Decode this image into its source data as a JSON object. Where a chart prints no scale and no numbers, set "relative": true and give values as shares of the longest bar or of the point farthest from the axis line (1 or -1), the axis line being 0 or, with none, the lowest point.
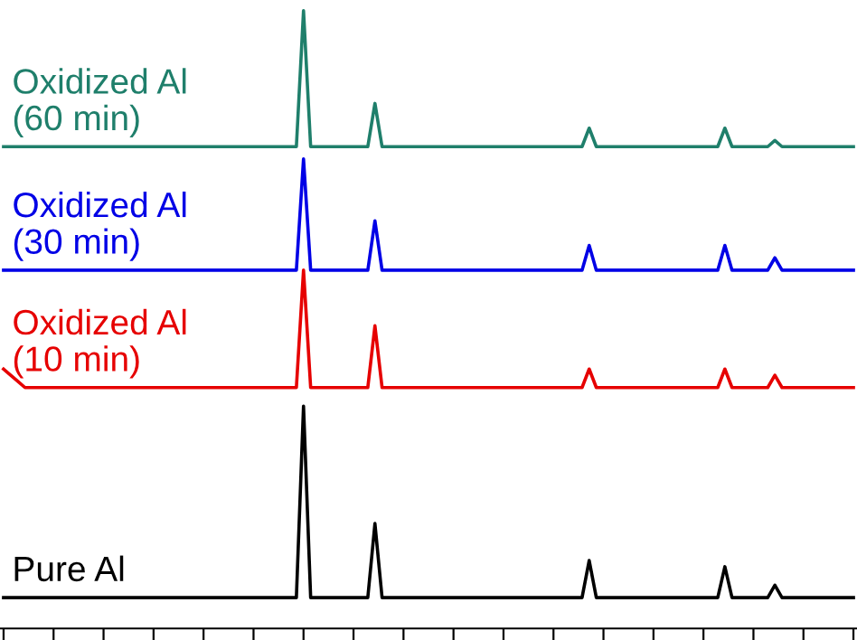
{
  "chart_data": {
    "type": "line",
    "relative": true,
    "grid": false,
    "legend": false,
    "marker": "none",
    "line_style": "solid",
    "categories": [
      null,
      null,
      null,
      null,
      null,
      null,
      null,
      null,
      null,
      null,
      null,
      null,
      null,
      null,
      null,
      null,
      null,
      null,
      null,
      null,
      null,
      null,
      null,
      null,
      null,
      null,
      null,
      null,
      null,
      null,
      null,
      null,
      null,
      null,
      null,
      null,
      null,
      null,
      null,
      null,
      null,
      null,
      null,
      null,
      null,
      null,
      null,
      null,
      null,
      null,
      null,
      null,
      null,
      null,
      null,
      null,
      null,
      null,
      null,
      null,
      null,
      null,
      null,
      null,
      null,
      null,
      null,
      null,
      null,
      null,
      null,
      null,
      null,
      null,
      null,
      null,
      null,
      null,
      null,
      null,
      null,
      null,
      null,
      null,
      null,
      null,
      null,
      null,
      null,
      null,
      null,
      null,
      null,
      null,
      null,
      null,
      null,
      null,
      null,
      null,
      null,
      null,
      null,
      null,
      null,
      null,
      null,
      null,
      null,
      null,
      null,
      null,
      null,
      null,
      null,
      null,
      null,
      null,
      null,
      null
    ],
    "series": [
      {
        "name": "Oxidized Al\n(60 min)",
        "color": "#1f7f6b",
        "values": [
          0.78,
          0.78,
          0.78,
          0.78,
          0.78,
          0.78,
          0.78,
          0.78,
          0.78,
          0.78,
          0.78,
          0.78,
          0.78,
          0.78,
          0.78,
          0.78,
          0.78,
          0.78,
          0.78,
          0.78,
          0.78,
          0.78,
          0.78,
          0.78,
          0.78,
          0.78,
          0.78,
          0.78,
          0.78,
          0.78,
          0.78,
          0.78,
          0.78,
          0.78,
          0.78,
          0.78,
          0.78,
          0.78,
          0.78,
          0.78,
          0.78,
          0.78,
          1,
          0.78,
          0.78,
          0.78,
          0.78,
          0.78,
          0.78,
          0.78,
          0.78,
          0.78,
          0.85,
          0.78,
          0.78,
          0.78,
          0.78,
          0.78,
          0.78,
          0.78,
          0.78,
          0.78,
          0.78,
          0.78,
          0.78,
          0.78,
          0.78,
          0.78,
          0.78,
          0.78,
          0.78,
          0.78,
          0.78,
          0.78,
          0.78,
          0.78,
          0.78,
          0.78,
          0.78,
          0.78,
          0.78,
          0.78,
          0.81,
          0.78,
          0.78,
          0.78,
          0.78,
          0.78,
          0.78,
          0.78,
          0.78,
          0.78,
          0.78,
          0.78,
          0.78,
          0.78,
          0.78,
          0.78,
          0.78,
          0.78,
          0.78,
          0.81,
          0.78,
          0.78,
          0.78,
          0.78,
          0.78,
          0.78,
          0.79,
          0.78,
          0.78,
          0.78,
          0.78,
          0.78,
          0.78,
          0.78,
          0.78,
          0.78,
          0.78,
          0.78
        ]
      },
      {
        "name": "Oxidized Al\n(30 min)",
        "color": "#0000e6",
        "values": [
          0.58,
          0.58,
          0.58,
          0.58,
          0.58,
          0.58,
          0.58,
          0.58,
          0.58,
          0.58,
          0.58,
          0.58,
          0.58,
          0.58,
          0.58,
          0.58,
          0.58,
          0.58,
          0.58,
          0.58,
          0.58,
          0.58,
          0.58,
          0.58,
          0.58,
          0.58,
          0.58,
          0.58,
          0.58,
          0.58,
          0.58,
          0.58,
          0.58,
          0.58,
          0.58,
          0.58,
          0.58,
          0.58,
          0.58,
          0.58,
          0.58,
          0.58,
          0.76,
          0.58,
          0.58,
          0.58,
          0.58,
          0.58,
          0.58,
          0.58,
          0.58,
          0.58,
          0.66,
          0.58,
          0.58,
          0.58,
          0.58,
          0.58,
          0.58,
          0.58,
          0.58,
          0.58,
          0.58,
          0.58,
          0.58,
          0.58,
          0.58,
          0.58,
          0.58,
          0.58,
          0.58,
          0.58,
          0.58,
          0.58,
          0.58,
          0.58,
          0.58,
          0.58,
          0.58,
          0.58,
          0.58,
          0.58,
          0.62,
          0.58,
          0.58,
          0.58,
          0.58,
          0.58,
          0.58,
          0.58,
          0.58,
          0.58,
          0.58,
          0.58,
          0.58,
          0.58,
          0.58,
          0.58,
          0.58,
          0.58,
          0.58,
          0.62,
          0.58,
          0.58,
          0.58,
          0.58,
          0.58,
          0.58,
          0.6,
          0.58,
          0.58,
          0.58,
          0.58,
          0.58,
          0.58,
          0.58,
          0.58,
          0.58,
          0.58,
          0.58
        ]
      },
      {
        "name": "Oxidized Al\n(10 min)",
        "color": "#e60000",
        "values": [
          0.42,
          0.41,
          0.4,
          0.39,
          0.39,
          0.39,
          0.39,
          0.39,
          0.39,
          0.39,
          0.39,
          0.39,
          0.39,
          0.39,
          0.39,
          0.39,
          0.39,
          0.39,
          0.39,
          0.39,
          0.39,
          0.39,
          0.39,
          0.39,
          0.39,
          0.39,
          0.39,
          0.39,
          0.39,
          0.39,
          0.39,
          0.39,
          0.39,
          0.39,
          0.39,
          0.39,
          0.39,
          0.39,
          0.39,
          0.39,
          0.39,
          0.39,
          0.58,
          0.39,
          0.39,
          0.39,
          0.39,
          0.39,
          0.39,
          0.39,
          0.39,
          0.39,
          0.49,
          0.39,
          0.39,
          0.39,
          0.39,
          0.39,
          0.39,
          0.39,
          0.39,
          0.39,
          0.39,
          0.39,
          0.39,
          0.39,
          0.39,
          0.39,
          0.39,
          0.39,
          0.39,
          0.39,
          0.39,
          0.39,
          0.39,
          0.39,
          0.39,
          0.39,
          0.39,
          0.39,
          0.39,
          0.39,
          0.42,
          0.39,
          0.39,
          0.39,
          0.39,
          0.39,
          0.39,
          0.39,
          0.39,
          0.39,
          0.39,
          0.39,
          0.39,
          0.39,
          0.39,
          0.39,
          0.39,
          0.39,
          0.39,
          0.42,
          0.39,
          0.39,
          0.39,
          0.39,
          0.39,
          0.39,
          0.41,
          0.39,
          0.39,
          0.39,
          0.39,
          0.39,
          0.39,
          0.39,
          0.39,
          0.39,
          0.39,
          0.39
        ]
      },
      {
        "name": "Pure Al",
        "color": "#000000",
        "values": [
          0.05,
          0.05,
          0.05,
          0.05,
          0.05,
          0.05,
          0.05,
          0.05,
          0.05,
          0.05,
          0.05,
          0.05,
          0.05,
          0.05,
          0.05,
          0.05,
          0.05,
          0.05,
          0.05,
          0.05,
          0.05,
          0.05,
          0.05,
          0.05,
          0.05,
          0.05,
          0.05,
          0.05,
          0.05,
          0.05,
          0.05,
          0.05,
          0.05,
          0.05,
          0.05,
          0.05,
          0.05,
          0.05,
          0.05,
          0.05,
          0.05,
          0.05,
          0.36,
          0.05,
          0.05,
          0.05,
          0.05,
          0.05,
          0.05,
          0.05,
          0.05,
          0.05,
          0.17,
          0.05,
          0.05,
          0.05,
          0.05,
          0.05,
          0.05,
          0.05,
          0.05,
          0.05,
          0.05,
          0.05,
          0.05,
          0.05,
          0.05,
          0.05,
          0.05,
          0.05,
          0.05,
          0.05,
          0.05,
          0.05,
          0.05,
          0.05,
          0.05,
          0.05,
          0.05,
          0.05,
          0.05,
          0.05,
          0.11,
          0.05,
          0.05,
          0.05,
          0.05,
          0.05,
          0.05,
          0.05,
          0.05,
          0.05,
          0.05,
          0.05,
          0.05,
          0.05,
          0.05,
          0.05,
          0.05,
          0.05,
          0.05,
          0.1,
          0.05,
          0.05,
          0.05,
          0.05,
          0.05,
          0.05,
          0.07,
          0.05,
          0.05,
          0.05,
          0.05,
          0.05,
          0.05,
          0.05,
          0.05,
          0.05,
          0.05,
          0.05
        ]
      }
    ]
  }
}
